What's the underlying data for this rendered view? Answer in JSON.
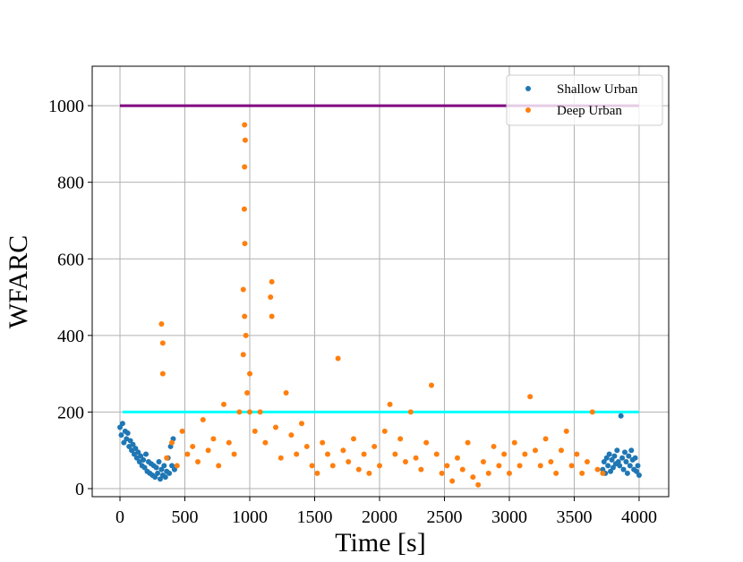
{
  "chart_data": {
    "type": "scatter",
    "xlabel": "Time [s]",
    "ylabel": "WFARC",
    "xlim": [
      -214,
      4228
    ],
    "ylim": [
      -21,
      1103
    ],
    "xticks": [
      0,
      500,
      1000,
      1500,
      2000,
      2500,
      3000,
      3500,
      4000
    ],
    "yticks": [
      0,
      200,
      400,
      600,
      800,
      1000
    ],
    "grid": true,
    "legend": "upper right",
    "reference_lines": [
      {
        "y": 1000,
        "x": [
          0,
          4000
        ],
        "color": "#800080"
      },
      {
        "y": 200,
        "x": [
          20,
          4000
        ],
        "color": "#00ffff"
      }
    ],
    "series": [
      {
        "name": "Shallow Urban",
        "color": "#1f77b4",
        "x": [
          0,
          10,
          20,
          30,
          40,
          50,
          60,
          70,
          80,
          90,
          100,
          110,
          120,
          130,
          140,
          150,
          160,
          170,
          180,
          190,
          200,
          210,
          220,
          230,
          240,
          250,
          260,
          270,
          280,
          290,
          300,
          310,
          320,
          330,
          340,
          350,
          360,
          370,
          380,
          390,
          400,
          410,
          420,
          3720,
          3730,
          3740,
          3750,
          3760,
          3770,
          3780,
          3790,
          3800,
          3810,
          3820,
          3830,
          3840,
          3850,
          3860,
          3870,
          3880,
          3890,
          3900,
          3910,
          3920,
          3930,
          3940,
          3950,
          3960,
          3970,
          3980,
          3990,
          4000
        ],
        "values": [
          160,
          140,
          170,
          120,
          150,
          130,
          145,
          110,
          125,
          100,
          115,
          90,
          105,
          80,
          95,
          70,
          85,
          60,
          75,
          55,
          90,
          45,
          70,
          40,
          65,
          35,
          60,
          30,
          55,
          40,
          70,
          25,
          50,
          35,
          60,
          30,
          45,
          80,
          40,
          110,
          60,
          130,
          50,
          50,
          70,
          40,
          80,
          60,
          90,
          45,
          75,
          55,
          85,
          65,
          100,
          70,
          60,
          190,
          80,
          50,
          95,
          70,
          40,
          85,
          60,
          100,
          75,
          50,
          80,
          45,
          60,
          35
        ]
      },
      {
        "name": "Deep Urban",
        "color": "#ff7f0e",
        "x": [
          320,
          360,
          400,
          440,
          480,
          520,
          560,
          600,
          640,
          680,
          720,
          760,
          800,
          840,
          880,
          920,
          960,
          1000,
          1040,
          1080,
          1120,
          1160,
          1200,
          1240,
          1280,
          1320,
          1360,
          1400,
          1440,
          1480,
          1520,
          1560,
          1600,
          1640,
          1680,
          1720,
          1760,
          1800,
          1840,
          1880,
          1920,
          1960,
          2000,
          2040,
          2080,
          2120,
          2160,
          2200,
          2240,
          2280,
          2320,
          2360,
          2400,
          2440,
          2480,
          2520,
          2560,
          2600,
          2640,
          2680,
          2720,
          2760,
          2800,
          2840,
          2880,
          2920,
          2960,
          3000,
          3040,
          3080,
          3120,
          3160,
          3200,
          3240,
          3280,
          3320,
          3360,
          3400,
          3440,
          3480,
          3520,
          3560,
          3600,
          3640,
          3680,
          3720,
          960,
          965,
          960,
          958,
          962,
          950,
          970,
          330,
          330,
          1170,
          1170,
          950,
          980,
          1000
        ],
        "values": [
          430,
          80,
          120,
          60,
          150,
          90,
          110,
          70,
          180,
          100,
          130,
          60,
          220,
          120,
          90,
          200,
          450,
          300,
          150,
          200,
          120,
          500,
          160,
          80,
          250,
          140,
          90,
          170,
          110,
          60,
          40,
          120,
          90,
          60,
          340,
          100,
          70,
          130,
          50,
          90,
          40,
          110,
          60,
          150,
          220,
          90,
          130,
          70,
          200,
          80,
          50,
          120,
          270,
          90,
          40,
          60,
          20,
          80,
          50,
          120,
          30,
          10,
          70,
          40,
          110,
          60,
          90,
          40,
          120,
          60,
          90,
          240,
          100,
          60,
          130,
          70,
          40,
          100,
          150,
          60,
          90,
          40,
          70,
          200,
          50,
          40,
          950,
          910,
          840,
          730,
          640,
          520,
          400,
          380,
          300,
          540,
          450,
          350,
          250,
          200
        ]
      }
    ]
  }
}
